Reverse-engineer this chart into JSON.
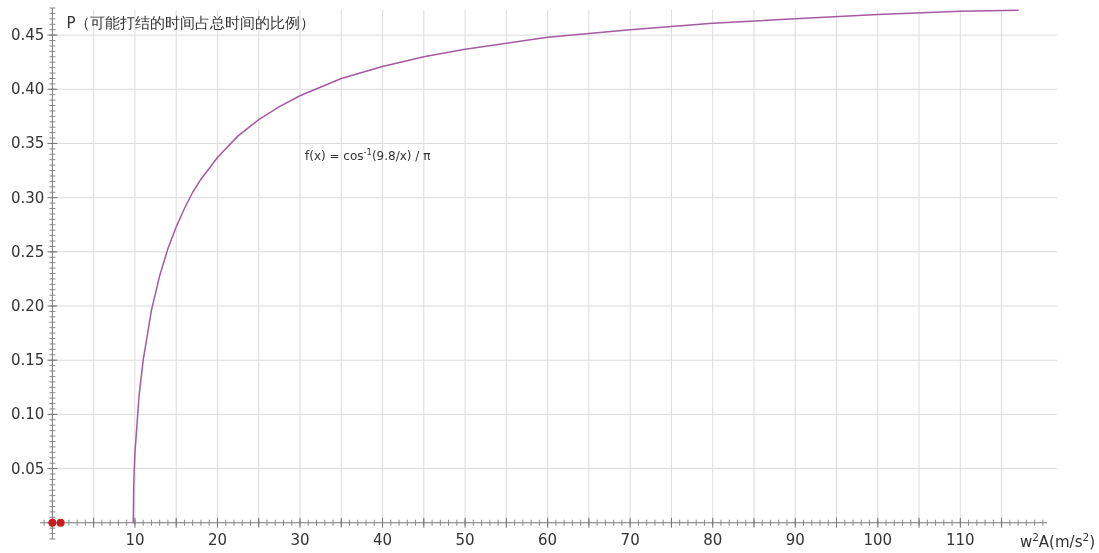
{
  "chart_data": {
    "type": "line",
    "xlabel": "w$^{2}$A(m/s$^{2}$)",
    "ylabel": "P（可能打结的时间占总时间的比例）",
    "annotations": [
      "f(x) = cos$^{-1}$(9.8/x) / π"
    ],
    "xlim": [
      -1.5,
      120.5
    ],
    "ylim": [
      -0.015,
      0.475
    ],
    "xticks": [
      {
        "value": 0,
        "label": null
      },
      {
        "value": 5,
        "label": null
      },
      10,
      {
        "value": 15,
        "label": null
      },
      20,
      {
        "value": 25,
        "label": null
      },
      30,
      {
        "value": 35,
        "label": null
      },
      40,
      {
        "value": 45,
        "label": null
      },
      50,
      {
        "value": 55,
        "label": null
      },
      60,
      {
        "value": 65,
        "label": null
      },
      70,
      {
        "value": 75,
        "label": null
      },
      80,
      {
        "value": 85,
        "label": null
      },
      90,
      {
        "value": 95,
        "label": null
      },
      100,
      {
        "value": 105,
        "label": null
      },
      110,
      {
        "value": 115,
        "label": null
      }
    ],
    "yticks": [
      {
        "value": 0,
        "label": null
      },
      {
        "value": 0.05,
        "label": "0.05"
      },
      {
        "value": 0.1,
        "label": "0.10"
      },
      {
        "value": 0.15,
        "label": "0.15"
      },
      {
        "value": 0.2,
        "label": "0.20"
      },
      {
        "value": 0.25,
        "label": "0.25"
      },
      {
        "value": 0.3,
        "label": "0.30"
      },
      {
        "value": 0.35,
        "label": "0.35"
      },
      {
        "value": 0.4,
        "label": "0.40"
      },
      {
        "value": 0.45,
        "label": "0.45"
      }
    ],
    "grid": true,
    "line_style": "solid",
    "series": [
      {
        "color": "#a35ba0",
        "x": [
          9.8,
          9.85,
          9.9,
          10,
          10.5,
          11,
          12,
          13,
          14,
          15,
          16,
          17,
          18,
          20,
          22.5,
          25,
          27.5,
          30,
          35,
          40,
          45,
          50,
          60,
          70,
          80,
          90,
          100,
          110,
          117
        ],
        "values": [
          0,
          0.032,
          0.045,
          0.064,
          0.117,
          0.15,
          0.196,
          0.228,
          0.253,
          0.273,
          0.29,
          0.305,
          0.317,
          0.337,
          0.357,
          0.372,
          0.384,
          0.394,
          0.41,
          0.421,
          0.43,
          0.437,
          0.448,
          0.455,
          0.461,
          0.465,
          0.469,
          0.472,
          0.473
        ]
      },
      {
        "type": "scatter",
        "marker": "circle",
        "color": "#c81e1e",
        "x": [
          0,
          1
        ],
        "values": [
          0,
          0
        ]
      }
    ]
  }
}
